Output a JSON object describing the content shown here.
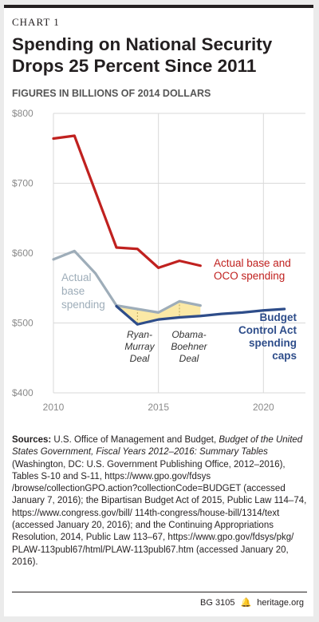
{
  "header": {
    "chart_label": "CHART 1",
    "title_line1": "Spending on National Security",
    "title_line2": "Drops 25 Percent Since 2011",
    "subtitle": "FIGURES IN BILLIONS OF 2014 DOLLARS"
  },
  "chart_data": {
    "type": "line",
    "xlim": [
      2010,
      2022
    ],
    "ylim": [
      400,
      800
    ],
    "xticks": [
      2010,
      2015,
      2020
    ],
    "xtick_labels": [
      "2010",
      "2015",
      "2020"
    ],
    "yticks": [
      400,
      500,
      600,
      700,
      800
    ],
    "ytick_labels": [
      "$400",
      "$500",
      "$600",
      "$700",
      "$800"
    ],
    "grid": true,
    "series": [
      {
        "id": "oco",
        "name": "Actual base and OCO spending",
        "label_lines": [
          "Actual base and",
          "OCO spending"
        ],
        "color": "#c0211f",
        "x": [
          2010,
          2011,
          2012,
          2013,
          2014,
          2015,
          2016,
          2017
        ],
        "y": [
          764,
          768,
          688,
          608,
          606,
          579,
          589,
          582
        ]
      },
      {
        "id": "base",
        "name": "Actual base spending",
        "label_lines": [
          "Actual",
          "base",
          "spending"
        ],
        "color": "#9eadb9",
        "x": [
          2010,
          2011,
          2012,
          2013,
          2014,
          2015,
          2016,
          2017
        ],
        "y": [
          591,
          603,
          571,
          525,
          520,
          515,
          531,
          525
        ]
      },
      {
        "id": "caps",
        "name": "Budget Control Act spending caps",
        "label_lines": [
          "Budget",
          "Control Act",
          "spending",
          "caps"
        ],
        "color": "#2e4d8a",
        "x": [
          2013,
          2014,
          2015,
          2016,
          2017,
          2018,
          2019,
          2020,
          2021
        ],
        "y": [
          524,
          498,
          505,
          508,
          510,
          513,
          515,
          518,
          520
        ]
      }
    ],
    "annotations": [
      {
        "id": "ryan",
        "lines": [
          "Ryan-",
          "Murray",
          "Deal"
        ],
        "x": 2014
      },
      {
        "id": "obama",
        "lines": [
          "Obama-",
          "Boehner",
          "Deal"
        ],
        "x": 2016
      }
    ],
    "fill_color": "#fbe9a6"
  },
  "sources": {
    "label": "Sources:",
    "text": "U.S. Office of Management and Budget, ",
    "italic": "Budget of the United States Government, Fiscal Years 2012–2016: Summary Tables",
    "rest": " (Washington, DC: U.S. Government Publishing Office, 2012–2016), Tables S-10 and S-11, https://www.gpo.gov/fdsys /browse/collectionGPO.action?collectionCode=BUDGET (accessed January 7, 2016); the Bipartisan Budget Act of 2015, Public Law 114–74, https://www.congress.gov/bill/ 114th-congress/house-bill/1314/text (accessed January 20, 2016); and the Continuing Appropriations Resolution, 2014, Public Law 113–67, https://www.gpo.gov/fdsys/pkg/ PLAW-113publ67/html/PLAW-113publ67.htm (accessed January 20, 2016)."
  },
  "footer": {
    "code": "BG 3105",
    "site": "heritage.org"
  }
}
